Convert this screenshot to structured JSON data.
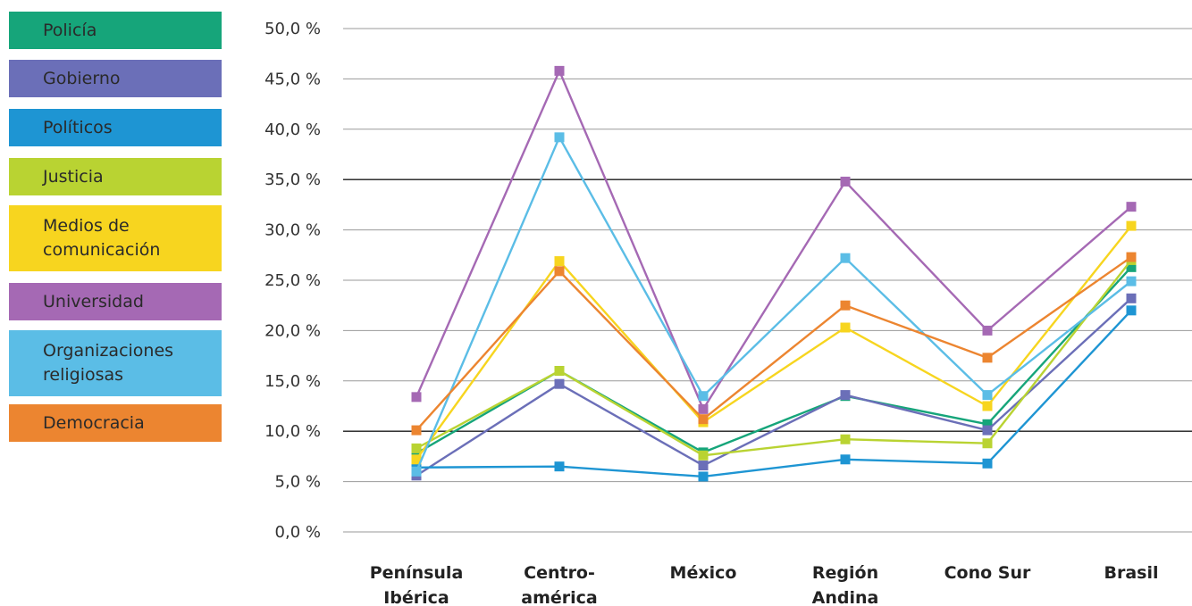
{
  "chart_data": {
    "type": "line",
    "categories": [
      "Península\nIbérica",
      "Centro-\namérica",
      "México",
      "Región\nAndina",
      "Cono Sur",
      "Brasil"
    ],
    "ylim": [
      0,
      50
    ],
    "yticks": [
      0,
      5,
      10,
      15,
      20,
      25,
      30,
      35,
      40,
      45,
      50
    ],
    "ytick_labels": [
      "0,0 %",
      "5,0 %",
      "10,0 %",
      "15,0 %",
      "20,0 %",
      "25,0 %",
      "30,0 %",
      "35,0 %",
      "40,0 %",
      "45,0 %",
      "50,0 %"
    ],
    "dark_gridlines": [
      10,
      35
    ],
    "legend_position": "left",
    "series": [
      {
        "name": "Policía",
        "color": "#16a57a",
        "values": [
          7.8,
          16.0,
          7.9,
          13.5,
          10.7,
          26.3
        ]
      },
      {
        "name": "Gobierno",
        "color": "#6b6fb8",
        "values": [
          5.6,
          14.7,
          6.6,
          13.6,
          10.1,
          23.2
        ]
      },
      {
        "name": "Políticos",
        "color": "#1e95d3",
        "values": [
          6.4,
          6.5,
          5.5,
          7.2,
          6.8,
          22.0
        ]
      },
      {
        "name": "Justicia",
        "color": "#b9d332",
        "values": [
          8.3,
          16.0,
          7.6,
          9.2,
          8.8,
          27.0
        ]
      },
      {
        "name": "Medios de\ncomunicación",
        "color": "#f7d51f",
        "values": [
          7.2,
          26.9,
          10.9,
          20.3,
          12.5,
          30.4
        ]
      },
      {
        "name": "Universidad",
        "color": "#a569b4",
        "values": [
          13.4,
          45.8,
          12.2,
          34.8,
          20.0,
          32.3
        ]
      },
      {
        "name": "Organizaciones\nreligiosas",
        "color": "#5bbde6",
        "values": [
          6.0,
          39.2,
          13.5,
          27.2,
          13.6,
          24.9
        ]
      },
      {
        "name": "Democracia",
        "color": "#ec8530",
        "values": [
          10.1,
          25.9,
          11.2,
          22.5,
          17.3,
          27.3
        ]
      }
    ]
  }
}
